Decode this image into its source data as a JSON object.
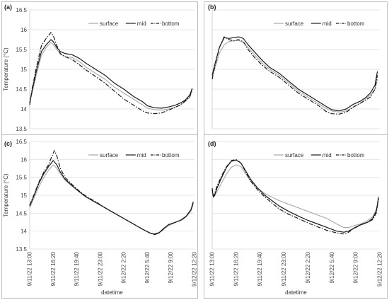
{
  "chart_data": [
    {
      "panel": "(a)",
      "type": "line",
      "ylabel": "Temperature (°C)",
      "xlabel": "",
      "ylim": [
        13.5,
        16.5
      ],
      "yticks": [
        "13.5",
        "14",
        "14.5",
        "15",
        "15.5",
        "16",
        "16.5"
      ],
      "xrange": [
        0,
        1400
      ],
      "grid": "horizontal",
      "legend": "top-right",
      "series": [
        {
          "name": "surface",
          "color": "#a8a8a8",
          "dash": "solid",
          "x": [
            0,
            20,
            60,
            100,
            140,
            180,
            200,
            230,
            260,
            300,
            360,
            420,
            480,
            560,
            640,
            720,
            800,
            880,
            960,
            1000,
            1060,
            1120,
            1180,
            1240,
            1280,
            1320,
            1360,
            1380
          ],
          "y": [
            14.15,
            14.4,
            14.9,
            15.35,
            15.55,
            15.68,
            15.62,
            15.5,
            15.38,
            15.32,
            15.3,
            15.2,
            15.05,
            14.9,
            14.75,
            14.55,
            14.4,
            14.25,
            14.1,
            14.02,
            13.98,
            13.97,
            14.0,
            14.05,
            14.1,
            14.18,
            14.3,
            14.45
          ]
        },
        {
          "name": "mid",
          "color": "#1a1a1a",
          "dash": "solid",
          "x": [
            0,
            20,
            60,
            100,
            140,
            180,
            200,
            230,
            260,
            300,
            360,
            420,
            480,
            560,
            640,
            720,
            800,
            880,
            960,
            1000,
            1060,
            1120,
            1180,
            1240,
            1280,
            1320,
            1360,
            1380
          ],
          "y": [
            14.15,
            14.45,
            15.0,
            15.45,
            15.62,
            15.75,
            15.7,
            15.55,
            15.45,
            15.4,
            15.37,
            15.28,
            15.15,
            15.0,
            14.85,
            14.65,
            14.5,
            14.32,
            14.18,
            14.08,
            14.03,
            14.02,
            14.05,
            14.1,
            14.15,
            14.22,
            14.35,
            14.52
          ]
        },
        {
          "name": "bottom",
          "color": "#1a1a1a",
          "dash": "dashdot",
          "x": [
            0,
            20,
            60,
            100,
            140,
            180,
            200,
            230,
            260,
            300,
            360,
            420,
            480,
            560,
            640,
            720,
            800,
            880,
            960,
            1000,
            1060,
            1120,
            1180,
            1240,
            1280,
            1320,
            1360,
            1380
          ],
          "y": [
            14.1,
            14.5,
            15.1,
            15.6,
            15.78,
            15.93,
            15.85,
            15.6,
            15.4,
            15.32,
            15.25,
            15.12,
            14.98,
            14.82,
            14.65,
            14.45,
            14.25,
            14.1,
            13.95,
            13.9,
            13.88,
            13.9,
            13.97,
            14.05,
            14.1,
            14.2,
            14.3,
            14.5
          ]
        }
      ]
    },
    {
      "panel": "(b)",
      "type": "line",
      "ylabel": "",
      "xlabel": "",
      "ylim": [
        13.5,
        16.5
      ],
      "yticks": [],
      "xrange": [
        0,
        1400
      ],
      "grid": "horizontal",
      "legend": "top-right",
      "series": [
        {
          "name": "surface",
          "color": "#a8a8a8",
          "dash": "solid",
          "x": [
            0,
            20,
            60,
            100,
            140,
            180,
            220,
            260,
            300,
            360,
            420,
            480,
            560,
            640,
            720,
            800,
            880,
            960,
            1000,
            1060,
            1120,
            1180,
            1240,
            1280,
            1320,
            1360,
            1380
          ],
          "y": [
            14.8,
            15.0,
            15.4,
            15.62,
            15.7,
            15.72,
            15.73,
            15.68,
            15.55,
            15.35,
            15.15,
            15.0,
            14.85,
            14.65,
            14.45,
            14.3,
            14.15,
            14.0,
            13.95,
            13.92,
            13.95,
            14.05,
            14.15,
            14.25,
            14.35,
            14.5,
            14.75
          ]
        },
        {
          "name": "mid",
          "color": "#1a1a1a",
          "dash": "solid",
          "x": [
            0,
            20,
            60,
            100,
            140,
            180,
            220,
            260,
            300,
            360,
            420,
            480,
            560,
            640,
            720,
            800,
            880,
            960,
            1000,
            1060,
            1120,
            1180,
            1240,
            1280,
            1320,
            1360,
            1380
          ],
          "y": [
            14.85,
            15.1,
            15.55,
            15.8,
            15.78,
            15.8,
            15.82,
            15.78,
            15.62,
            15.42,
            15.22,
            15.05,
            14.9,
            14.7,
            14.5,
            14.35,
            14.2,
            14.05,
            13.98,
            13.95,
            14.0,
            14.12,
            14.2,
            14.28,
            14.4,
            14.6,
            14.95
          ]
        },
        {
          "name": "bottom",
          "color": "#1a1a1a",
          "dash": "dashdot",
          "x": [
            0,
            20,
            60,
            100,
            140,
            180,
            220,
            260,
            300,
            360,
            420,
            480,
            560,
            640,
            720,
            800,
            880,
            960,
            1000,
            1060,
            1120,
            1180,
            1240,
            1280,
            1320,
            1360,
            1380
          ],
          "y": [
            14.75,
            15.05,
            15.55,
            15.82,
            15.75,
            15.72,
            15.75,
            15.7,
            15.5,
            15.28,
            15.1,
            14.95,
            14.8,
            14.6,
            14.4,
            14.25,
            14.1,
            13.92,
            13.88,
            13.87,
            13.92,
            14.05,
            14.15,
            14.22,
            14.3,
            14.5,
            14.85
          ]
        }
      ]
    },
    {
      "panel": "(c)",
      "type": "line",
      "ylabel": "Temperature (°C)",
      "xlabel": "datetime",
      "ylim": [
        13.5,
        16.5
      ],
      "yticks": [
        "13.5",
        "14",
        "14.5",
        "15",
        "15.5",
        "16",
        "16.5"
      ],
      "xticks": [
        "9/11/22 13:00",
        "9/11/22 16:20",
        "9/11/22 19:40",
        "9/11/22 23:00",
        "9/12/22 2:20",
        "9/12/22 5:40",
        "9/12/22 9:00",
        "9/12/22 12:20"
      ],
      "xticks_at": [
        0,
        200,
        400,
        600,
        800,
        1000,
        1200,
        1400
      ],
      "xrange": [
        0,
        1400
      ],
      "grid": "horizontal",
      "legend": "top-right",
      "series": [
        {
          "name": "surface",
          "color": "#a8a8a8",
          "dash": "solid",
          "x": [
            0,
            40,
            80,
            120,
            160,
            200,
            230,
            260,
            300,
            360,
            420,
            480,
            560,
            640,
            720,
            800,
            880,
            960,
            1020,
            1060,
            1100,
            1140,
            1180,
            1240,
            1290,
            1330,
            1370,
            1390
          ],
          "y": [
            14.65,
            14.95,
            15.25,
            15.5,
            15.7,
            15.85,
            15.75,
            15.6,
            15.42,
            15.25,
            15.1,
            14.95,
            14.8,
            14.65,
            14.5,
            14.35,
            14.2,
            14.05,
            13.95,
            13.9,
            13.95,
            14.05,
            14.15,
            14.25,
            14.3,
            14.4,
            14.55,
            14.75
          ]
        },
        {
          "name": "mid",
          "color": "#1a1a1a",
          "dash": "solid",
          "x": [
            0,
            40,
            80,
            120,
            160,
            200,
            230,
            260,
            300,
            360,
            420,
            480,
            560,
            640,
            720,
            800,
            880,
            960,
            1020,
            1060,
            1100,
            1140,
            1180,
            1240,
            1290,
            1330,
            1370,
            1390
          ],
          "y": [
            14.7,
            15.02,
            15.35,
            15.6,
            15.8,
            15.97,
            15.85,
            15.65,
            15.45,
            15.27,
            15.1,
            14.95,
            14.8,
            14.65,
            14.5,
            14.35,
            14.2,
            14.05,
            13.95,
            13.92,
            13.96,
            14.08,
            14.18,
            14.25,
            14.32,
            14.42,
            14.6,
            14.82
          ]
        },
        {
          "name": "bottom",
          "color": "#1a1a1a",
          "dash": "dashdot",
          "x": [
            0,
            40,
            80,
            120,
            160,
            190,
            210,
            230,
            260,
            300,
            360,
            420,
            480,
            560,
            640,
            720,
            800,
            880,
            960,
            1020,
            1060,
            1100,
            1140,
            1180,
            1240,
            1290,
            1330,
            1370,
            1390
          ],
          "y": [
            14.72,
            15.05,
            15.38,
            15.65,
            15.85,
            16.1,
            16.25,
            16.1,
            15.75,
            15.5,
            15.3,
            15.12,
            14.97,
            14.82,
            14.65,
            14.5,
            14.35,
            14.2,
            14.05,
            13.95,
            13.9,
            13.95,
            14.07,
            14.18,
            14.25,
            14.32,
            14.42,
            14.6,
            14.8
          ]
        }
      ]
    },
    {
      "panel": "(d)",
      "type": "line",
      "ylabel": "",
      "xlabel": "datetime",
      "ylim": [
        13.5,
        16.5
      ],
      "yticks": [],
      "xticks": [
        "9/11/22 13:00",
        "9/11/22 16:20",
        "9/11/22 19:40",
        "9/11/22 23:00",
        "9/12/22 2:20",
        "9/12/22 5:40",
        "9/12/22 9:00",
        "9/12/22 12:20"
      ],
      "xticks_at": [
        0,
        200,
        400,
        600,
        800,
        1000,
        1200,
        1400
      ],
      "xrange": [
        0,
        1400
      ],
      "grid": "horizontal",
      "legend": "top-right",
      "series": [
        {
          "name": "surface",
          "color": "#a8a8a8",
          "dash": "solid",
          "x": [
            0,
            10,
            20,
            40,
            80,
            120,
            160,
            200,
            240,
            280,
            320,
            380,
            440,
            500,
            560,
            640,
            720,
            800,
            880,
            960,
            1040,
            1100,
            1140,
            1180,
            1240,
            1300,
            1340,
            1370,
            1390
          ],
          "y": [
            15.1,
            14.95,
            14.98,
            15.1,
            15.35,
            15.6,
            15.78,
            15.85,
            15.8,
            15.6,
            15.4,
            15.2,
            15.05,
            14.95,
            14.85,
            14.75,
            14.65,
            14.55,
            14.45,
            14.35,
            14.2,
            14.1,
            14.1,
            14.15,
            14.2,
            14.3,
            14.4,
            14.6,
            14.85
          ]
        },
        {
          "name": "mid",
          "color": "#1a1a1a",
          "dash": "solid",
          "x": [
            0,
            10,
            20,
            40,
            80,
            120,
            160,
            200,
            240,
            280,
            320,
            380,
            440,
            500,
            560,
            640,
            720,
            800,
            880,
            960,
            1040,
            1100,
            1140,
            1180,
            1240,
            1300,
            1340,
            1370,
            1390
          ],
          "y": [
            15.15,
            14.95,
            15.0,
            15.2,
            15.5,
            15.78,
            15.95,
            15.98,
            15.9,
            15.68,
            15.45,
            15.2,
            15.0,
            14.85,
            14.7,
            14.55,
            14.42,
            14.3,
            14.2,
            14.1,
            14.0,
            13.97,
            14.0,
            14.08,
            14.18,
            14.25,
            14.35,
            14.55,
            14.95
          ]
        },
        {
          "name": "bottom",
          "color": "#1a1a1a",
          "dash": "dashdot",
          "x": [
            0,
            10,
            20,
            40,
            80,
            120,
            160,
            200,
            240,
            280,
            320,
            380,
            440,
            500,
            560,
            640,
            720,
            800,
            880,
            960,
            1040,
            1100,
            1140,
            1180,
            1240,
            1300,
            1340,
            1370,
            1390
          ],
          "y": [
            15.2,
            14.95,
            15.05,
            15.25,
            15.55,
            15.8,
            15.97,
            16.0,
            15.9,
            15.65,
            15.4,
            15.15,
            14.95,
            14.78,
            14.62,
            14.47,
            14.35,
            14.23,
            14.12,
            14.02,
            13.95,
            13.92,
            13.97,
            14.07,
            14.17,
            14.25,
            14.32,
            14.5,
            14.9
          ]
        }
      ]
    }
  ]
}
